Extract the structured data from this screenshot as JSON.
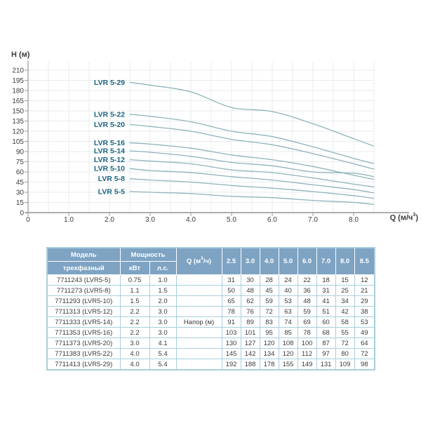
{
  "chart": {
    "y_axis_title": "H (м)",
    "x_axis_title_prefix": "Q (м/ч",
    "x_axis_title_sup": "3",
    "x_axis_title_suffix": ")",
    "x_tick_labels": [
      "0",
      "1.0",
      "2.0",
      "3.0",
      "4.0",
      "5.0",
      "6.0",
      "7.0",
      "8.0"
    ],
    "y_ticks": [
      0,
      15,
      30,
      45,
      60,
      75,
      90,
      105,
      120,
      135,
      150,
      165,
      180,
      195,
      210
    ],
    "colors": {
      "curve": "#8fb3ba",
      "series_label": "#1a6580",
      "grid": "#e9ebee",
      "axis": "#aeaeae",
      "tick": "#9a9a9a",
      "tick_text": "#3c3c3c"
    }
  },
  "chart_data": {
    "type": "line",
    "title": "",
    "xlabel": "Q (м/ч³)",
    "ylabel": "H (м)",
    "xlim": [
      0,
      8.7
    ],
    "ylim": [
      0,
      210
    ],
    "grid": true,
    "legend_position": "inline-labels-left-of-curves",
    "x": [
      2.5,
      3.0,
      4.0,
      5.0,
      6.0,
      7.0,
      8.0,
      8.5
    ],
    "series": [
      {
        "name": "LVR 5-29",
        "values": [
          192,
          188,
          178,
          155,
          149,
          131,
          109,
          98
        ]
      },
      {
        "name": "LVR 5-22",
        "values": [
          145,
          142,
          134,
          120,
          112,
          97,
          80,
          72
        ]
      },
      {
        "name": "LVR 5-20",
        "values": [
          130,
          127,
          120,
          108,
          100,
          87,
          72,
          64
        ]
      },
      {
        "name": "LVR 5-16",
        "values": [
          103,
          101,
          95,
          85,
          78,
          68,
          55,
          49
        ]
      },
      {
        "name": "LVR 5-14",
        "values": [
          91,
          89,
          83,
          74,
          69,
          60,
          58,
          53
        ]
      },
      {
        "name": "LVR 5-12",
        "values": [
          78,
          76,
          72,
          63,
          59,
          51,
          42,
          38
        ]
      },
      {
        "name": "LVR 5-10",
        "values": [
          65,
          62,
          59,
          53,
          48,
          41,
          34,
          29
        ]
      },
      {
        "name": "LVR 5-8",
        "values": [
          50,
          48,
          45,
          40,
          36,
          31,
          25,
          21
        ]
      },
      {
        "name": "LVR 5-5",
        "values": [
          31,
          30,
          28,
          24,
          22,
          18,
          15,
          12
        ]
      }
    ]
  },
  "table": {
    "header": {
      "model_title": "Модель",
      "model_sub": "трехфазный",
      "power_title": "Мощность",
      "power_kw": "кВт",
      "power_hp": "л.с.",
      "q_prefix": "Q (м",
      "q_sup": "3",
      "q_suffix": "/ч)",
      "flow_cols": [
        "2.5",
        "3.0",
        "4.0",
        "5.0",
        "6.0",
        "7.0",
        "8.0",
        "8.5"
      ]
    },
    "napor_label": "Напор (м)",
    "napor_row_index": 4,
    "rows": [
      {
        "model": "7711243 (LVR5-5)",
        "kw": "0.75",
        "hp": "1.0",
        "heads": [
          31,
          30,
          28,
          24,
          22,
          18,
          15,
          12
        ]
      },
      {
        "model": "7711273 (LVR5-8)",
        "kw": "1.1",
        "hp": "1.5",
        "heads": [
          50,
          48,
          45,
          40,
          36,
          31,
          25,
          21
        ]
      },
      {
        "model": "7711293 (LVR5-10)",
        "kw": "1.5",
        "hp": "2.0",
        "heads": [
          65,
          62,
          59,
          53,
          48,
          41,
          34,
          29
        ]
      },
      {
        "model": "7711313 (LVR5-12)",
        "kw": "2.2",
        "hp": "3.0",
        "heads": [
          78,
          76,
          72,
          63,
          59,
          51,
          42,
          38
        ]
      },
      {
        "model": "7711333 (LVR5-14)",
        "kw": "2.2",
        "hp": "3.0",
        "heads": [
          91,
          89,
          83,
          74,
          69,
          60,
          58,
          53
        ]
      },
      {
        "model": "7711353 (LVR5-16)",
        "kw": "2.2",
        "hp": "3.0",
        "heads": [
          103,
          101,
          95,
          85,
          78,
          68,
          55,
          49
        ]
      },
      {
        "model": "7711373 (LVR5-20)",
        "kw": "3.0",
        "hp": "4.1",
        "heads": [
          130,
          127,
          120,
          108,
          100,
          87,
          72,
          64
        ]
      },
      {
        "model": "7711383 (LVR5-22)",
        "kw": "4.0",
        "hp": "5.4",
        "heads": [
          145,
          142,
          134,
          120,
          112,
          97,
          80,
          72
        ]
      },
      {
        "model": "7711413 (LVR5-29)",
        "kw": "4.0",
        "hp": "5.4",
        "heads": [
          192,
          188,
          178,
          155,
          149,
          131,
          109,
          98
        ]
      }
    ]
  }
}
